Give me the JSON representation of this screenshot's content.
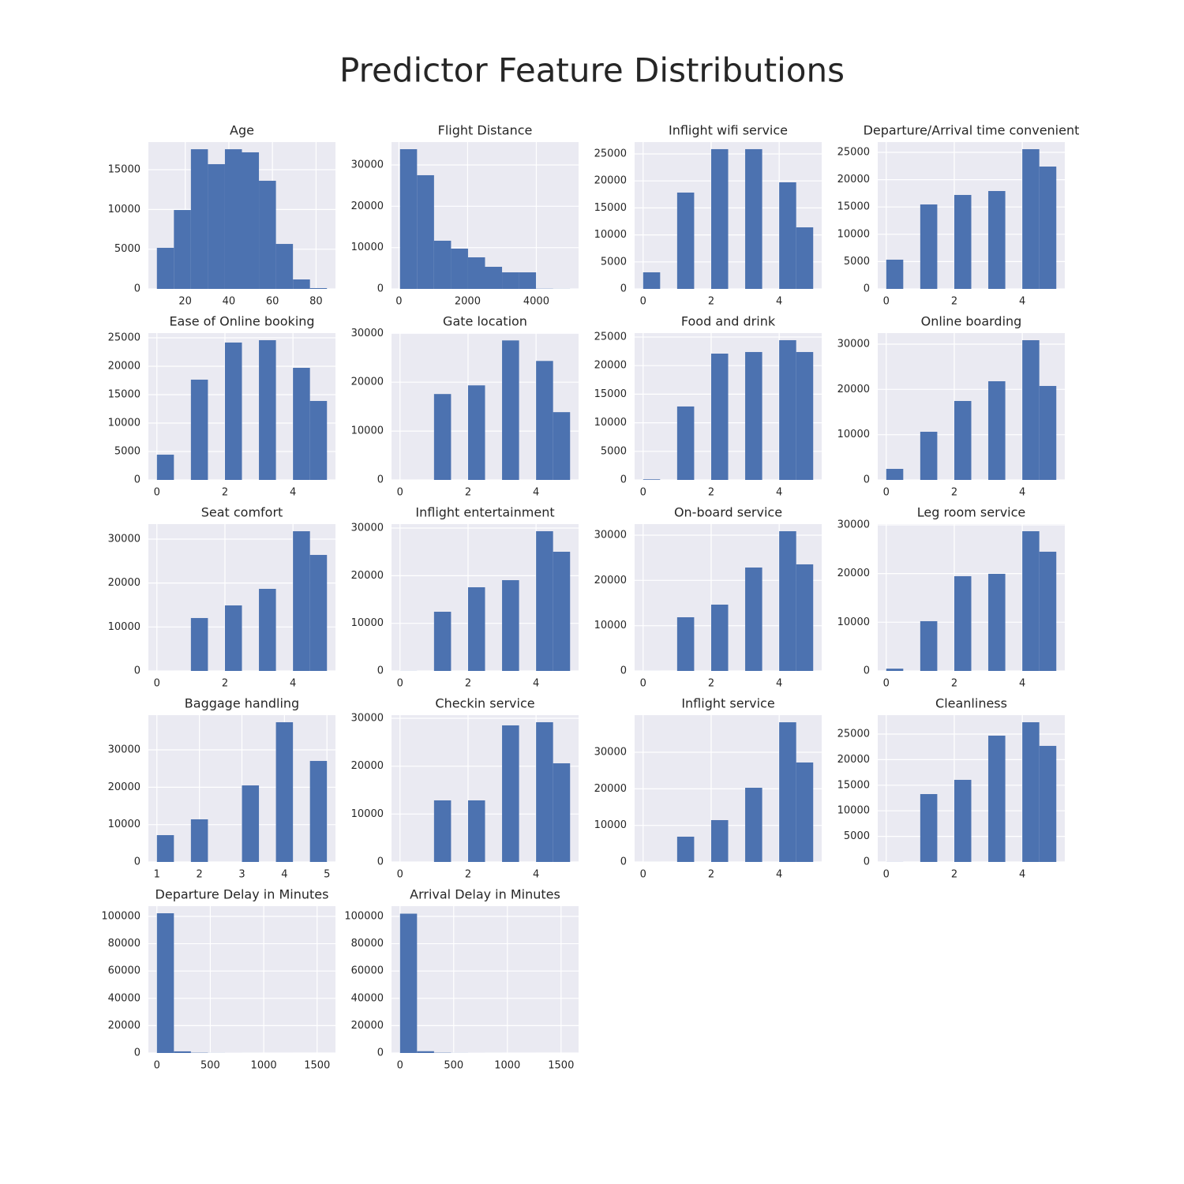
{
  "title": "Predictor Feature Distributions",
  "chart_data": [
    {
      "type": "histogram",
      "title": "Age",
      "bins": [
        7,
        14.8,
        22.6,
        30.4,
        38.2,
        46,
        53.8,
        61.6,
        69.4,
        77.2,
        85
      ],
      "counts": [
        5170,
        9930,
        17580,
        15700,
        17580,
        17190,
        13610,
        5660,
        1190,
        100
      ],
      "xlim": [
        3.1,
        88.9
      ],
      "ylim": [
        0,
        18480
      ],
      "xticks": [
        20,
        40,
        60,
        80
      ],
      "yticks": [
        0,
        5000,
        10000,
        15000
      ],
      "color": "#4c72b0",
      "grid": true
    },
    {
      "type": "histogram",
      "title": "Flight Distance",
      "bins": [
        31,
        526.2,
        1021.4,
        1516.6,
        2011.8,
        2507,
        3002.2,
        3497.4,
        3992.6,
        4487.8,
        4983
      ],
      "counts": [
        33820,
        27520,
        11660,
        9750,
        7640,
        5350,
        4010,
        4010,
        50,
        20
      ],
      "xlim": [
        -217,
        5231
      ],
      "ylim": [
        0,
        35540
      ],
      "xticks": [
        0,
        2000,
        4000
      ],
      "yticks": [
        0,
        10000,
        20000,
        30000
      ],
      "color": "#4c72b0",
      "grid": true
    },
    {
      "type": "histogram",
      "title": "Inflight wifi service",
      "bins": [
        0,
        0.5,
        1,
        1.5,
        2,
        2.5,
        3,
        3.5,
        4,
        4.5,
        5
      ],
      "counts": [
        3070,
        0,
        17840,
        0,
        25880,
        0,
        25880,
        0,
        19740,
        11400
      ],
      "xlim": [
        -0.25,
        5.25
      ],
      "ylim": [
        0,
        27190
      ],
      "xticks": [
        0,
        2,
        4
      ],
      "yticks": [
        0,
        5000,
        10000,
        15000,
        20000,
        25000
      ],
      "color": "#4c72b0",
      "grid": true
    },
    {
      "type": "histogram",
      "title": "Departure/Arrival time convenient",
      "bins": [
        0,
        0.5,
        1,
        1.5,
        2,
        2.5,
        3,
        3.5,
        4,
        4.5,
        5
      ],
      "counts": [
        5350,
        0,
        15460,
        0,
        17200,
        0,
        17920,
        0,
        25580,
        22400
      ],
      "xlim": [
        -0.25,
        5.25
      ],
      "ylim": [
        0,
        26880
      ],
      "xticks": [
        0,
        2,
        4
      ],
      "yticks": [
        0,
        5000,
        10000,
        15000,
        20000,
        25000
      ],
      "color": "#4c72b0",
      "grid": true
    },
    {
      "type": "histogram",
      "title": "Ease of Online booking",
      "bins": [
        0,
        0.5,
        1,
        1.5,
        2,
        2.5,
        3,
        3.5,
        4,
        4.5,
        5
      ],
      "counts": [
        4440,
        0,
        17640,
        0,
        24170,
        0,
        24580,
        0,
        19720,
        13890
      ],
      "xlim": [
        -0.25,
        5.25
      ],
      "ylim": [
        0,
        25830
      ],
      "xticks": [
        0,
        2,
        4
      ],
      "yticks": [
        0,
        5000,
        10000,
        15000,
        20000,
        25000
      ],
      "color": "#4c72b0",
      "grid": true
    },
    {
      "type": "histogram",
      "title": "Gate location",
      "bins": [
        0,
        0.5,
        1,
        1.5,
        2,
        2.5,
        3,
        3.5,
        4,
        4.5,
        5
      ],
      "counts": [
        1,
        0,
        17580,
        0,
        19350,
        0,
        28550,
        0,
        24350,
        13870
      ],
      "xlim": [
        -0.25,
        5.25
      ],
      "ylim": [
        0,
        30050
      ],
      "xticks": [
        0,
        2,
        4
      ],
      "yticks": [
        0,
        10000,
        20000,
        30000
      ],
      "color": "#4c72b0",
      "grid": true
    },
    {
      "type": "histogram",
      "title": "Food and drink",
      "bins": [
        0,
        0.5,
        1,
        1.5,
        2,
        2.5,
        3,
        3.5,
        4,
        4.5,
        5
      ],
      "counts": [
        100,
        0,
        12850,
        0,
        22100,
        0,
        22380,
        0,
        24450,
        22380
      ],
      "xlim": [
        -0.25,
        5.25
      ],
      "ylim": [
        0,
        25690
      ],
      "xticks": [
        0,
        2,
        4
      ],
      "yticks": [
        0,
        5000,
        10000,
        15000,
        20000,
        25000
      ],
      "color": "#4c72b0",
      "grid": true
    },
    {
      "type": "histogram",
      "title": "Online boarding",
      "bins": [
        0,
        0.5,
        1,
        1.5,
        2,
        2.5,
        3,
        3.5,
        4,
        4.5,
        5
      ],
      "counts": [
        2440,
        0,
        10640,
        0,
        17440,
        0,
        21800,
        0,
        30870,
        20760
      ],
      "xlim": [
        -0.25,
        5.25
      ],
      "ylim": [
        0,
        32440
      ],
      "xticks": [
        0,
        2,
        4
      ],
      "yticks": [
        0,
        10000,
        20000,
        30000
      ],
      "color": "#4c72b0",
      "grid": true
    },
    {
      "type": "histogram",
      "title": "Seat comfort",
      "bins": [
        0,
        0.5,
        1,
        1.5,
        2,
        2.5,
        3,
        3.5,
        4,
        4.5,
        5
      ],
      "counts": [
        1,
        0,
        12040,
        0,
        14910,
        0,
        18680,
        0,
        31790,
        26400
      ],
      "xlim": [
        -0.25,
        5.25
      ],
      "ylim": [
        0,
        33410
      ],
      "xticks": [
        0,
        2,
        4
      ],
      "yticks": [
        0,
        10000,
        20000,
        30000
      ],
      "color": "#4c72b0",
      "grid": true
    },
    {
      "type": "histogram",
      "title": "Inflight entertainment",
      "bins": [
        0,
        0.5,
        1,
        1.5,
        2,
        2.5,
        3,
        3.5,
        4,
        4.5,
        5
      ],
      "counts": [
        14,
        0,
        12430,
        0,
        17570,
        0,
        19060,
        0,
        29340,
        25030
      ],
      "xlim": [
        -0.25,
        5.25
      ],
      "ylim": [
        0,
        30830
      ],
      "xticks": [
        0,
        2,
        4
      ],
      "yticks": [
        0,
        10000,
        20000,
        30000
      ],
      "color": "#4c72b0",
      "grid": true
    },
    {
      "type": "histogram",
      "title": "On-board service",
      "bins": [
        0,
        0.5,
        1,
        1.5,
        2,
        2.5,
        3,
        3.5,
        4,
        4.5,
        5
      ],
      "counts": [
        3,
        0,
        11860,
        0,
        14650,
        0,
        22850,
        0,
        30870,
        23550
      ],
      "xlim": [
        -0.25,
        5.25
      ],
      "ylim": [
        0,
        32440
      ],
      "xticks": [
        0,
        2,
        4
      ],
      "yticks": [
        0,
        10000,
        20000,
        30000
      ],
      "color": "#4c72b0",
      "grid": true
    },
    {
      "type": "histogram",
      "title": "Leg room service",
      "bins": [
        0,
        0.5,
        1,
        1.5,
        2,
        2.5,
        3,
        3.5,
        4,
        4.5,
        5
      ],
      "counts": [
        470,
        0,
        10220,
        0,
        19460,
        0,
        19950,
        0,
        28700,
        24490
      ],
      "xlim": [
        -0.25,
        5.25
      ],
      "ylim": [
        0,
        30160
      ],
      "xticks": [
        0,
        2,
        4
      ],
      "yticks": [
        0,
        10000,
        20000,
        30000
      ],
      "color": "#4c72b0",
      "grid": true
    },
    {
      "type": "histogram",
      "title": "Baggage handling",
      "bins": [
        1,
        1.4,
        1.8,
        2.2,
        2.6,
        3,
        3.4,
        3.8,
        4.2,
        4.6,
        5
      ],
      "counts": [
        7180,
        0,
        11410,
        0,
        0,
        20490,
        0,
        37400,
        0,
        27040
      ],
      "xlim": [
        0.8,
        5.2
      ],
      "ylim": [
        0,
        39300
      ],
      "xticks": [
        1,
        2,
        3,
        4,
        5
      ],
      "yticks": [
        0,
        10000,
        20000,
        30000
      ],
      "color": "#4c72b0",
      "grid": true
    },
    {
      "type": "histogram",
      "title": "Checkin service",
      "bins": [
        0,
        0.5,
        1,
        1.5,
        2,
        2.5,
        3,
        3.5,
        4,
        4.5,
        5
      ],
      "counts": [
        1,
        0,
        12860,
        0,
        12860,
        0,
        28520,
        0,
        29180,
        20600
      ],
      "xlim": [
        -0.25,
        5.25
      ],
      "ylim": [
        0,
        30660
      ],
      "xticks": [
        0,
        2,
        4
      ],
      "yticks": [
        0,
        10000,
        20000,
        30000
      ],
      "color": "#4c72b0",
      "grid": true
    },
    {
      "type": "histogram",
      "title": "Inflight service",
      "bins": [
        0,
        0.5,
        1,
        1.5,
        2,
        2.5,
        3,
        3.5,
        4,
        4.5,
        5
      ],
      "counts": [
        3,
        0,
        6910,
        0,
        11440,
        0,
        20290,
        0,
        38200,
        27200
      ],
      "xlim": [
        -0.25,
        5.25
      ],
      "ylim": [
        0,
        40150
      ],
      "xticks": [
        0,
        2,
        4
      ],
      "yticks": [
        0,
        10000,
        20000,
        30000
      ],
      "color": "#4c72b0",
      "grid": true
    },
    {
      "type": "histogram",
      "title": "Cleanliness",
      "bins": [
        0,
        0.5,
        1,
        1.5,
        2,
        2.5,
        3,
        3.5,
        4,
        4.5,
        5
      ],
      "counts": [
        14,
        0,
        13270,
        0,
        16050,
        0,
        24690,
        0,
        27310,
        22690
      ],
      "xlim": [
        -0.25,
        5.25
      ],
      "ylim": [
        0,
        28700
      ],
      "xticks": [
        0,
        2,
        4
      ],
      "yticks": [
        0,
        5000,
        10000,
        15000,
        20000,
        25000
      ],
      "color": "#4c72b0",
      "grid": true
    },
    {
      "type": "histogram",
      "title": "Departure Delay in Minutes",
      "bins": [
        0,
        159.2,
        318.4,
        477.6,
        636.8,
        796,
        955.2,
        1114.4,
        1273.6,
        1432.8,
        1592
      ],
      "counts": [
        102300,
        1200,
        200,
        50,
        20,
        10,
        5,
        3,
        0,
        1
      ],
      "xlim": [
        -79.6,
        1671.6
      ],
      "ylim": [
        0,
        107500
      ],
      "xticks": [
        0,
        500,
        1000,
        1500
      ],
      "yticks": [
        0,
        20000,
        40000,
        60000,
        80000,
        100000
      ],
      "color": "#4c72b0",
      "grid": true
    },
    {
      "type": "histogram",
      "title": "Arrival Delay in Minutes",
      "bins": [
        0,
        158.4,
        316.8,
        475.2,
        633.6,
        792,
        950.4,
        1108.8,
        1267.2,
        1425.6,
        1584
      ],
      "counts": [
        102000,
        1300,
        200,
        50,
        20,
        10,
        5,
        3,
        0,
        1
      ],
      "xlim": [
        -79.2,
        1663.2
      ],
      "ylim": [
        0,
        107500
      ],
      "xticks": [
        0,
        500,
        1000,
        1500
      ],
      "yticks": [
        0,
        20000,
        40000,
        60000,
        80000,
        100000
      ],
      "color": "#4c72b0",
      "grid": true
    }
  ]
}
